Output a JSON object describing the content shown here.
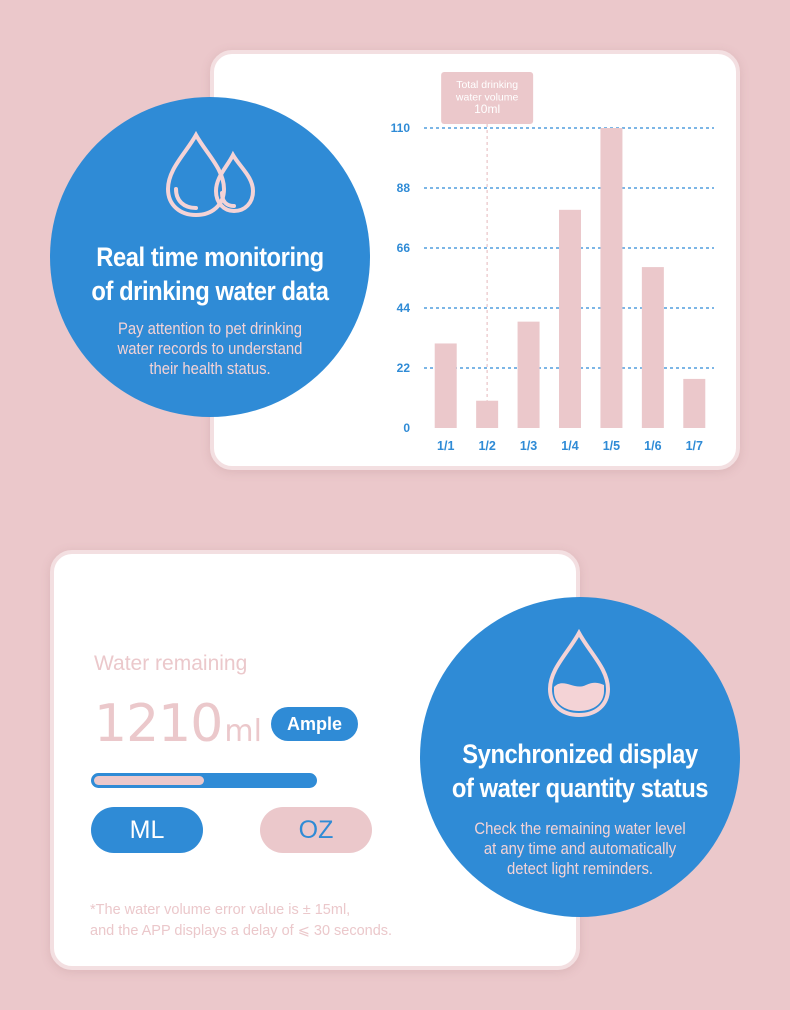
{
  "monitor": {
    "title_line1": "Real time monitoring",
    "title_line2": "of drinking water data",
    "sub_line1": "Pay attention to pet drinking",
    "sub_line2": "water records to understand",
    "sub_line3": "their health status."
  },
  "chart_data": {
    "type": "bar",
    "categories": [
      "1/1",
      "1/2",
      "1/3",
      "1/4",
      "1/5",
      "1/6",
      "1/7"
    ],
    "values": [
      31,
      10,
      39,
      80,
      110,
      59,
      18
    ],
    "ylim": [
      0,
      110
    ],
    "yticks": [
      "0",
      "22",
      "44",
      "66",
      "88",
      "110"
    ],
    "tooltip_line1": "Total drinking",
    "tooltip_line2": "water volume",
    "tooltip_line3": "10ml",
    "highlight_index": 1,
    "grid": true
  },
  "water": {
    "label": "Water remaining",
    "value": "1210",
    "unit": "ml",
    "status": "Ample",
    "level_fraction": 0.5,
    "ml_button": "ML",
    "oz_button": "OZ",
    "note_line1": "*The water volume error value is ± 15ml,",
    "note_line2": "and the APP displays a delay of ⩽ 30 seconds."
  },
  "sync": {
    "title_line1": "Synchronized display",
    "title_line2": "of water quantity status",
    "sub_line1": "Check the remaining water level",
    "sub_line2": "at any time and automatically",
    "sub_line3": "detect light reminders."
  },
  "colors": {
    "background": "#ebc8cb",
    "accent_blue": "#2f8bd6",
    "bar_pink": "#ebc8cb"
  }
}
